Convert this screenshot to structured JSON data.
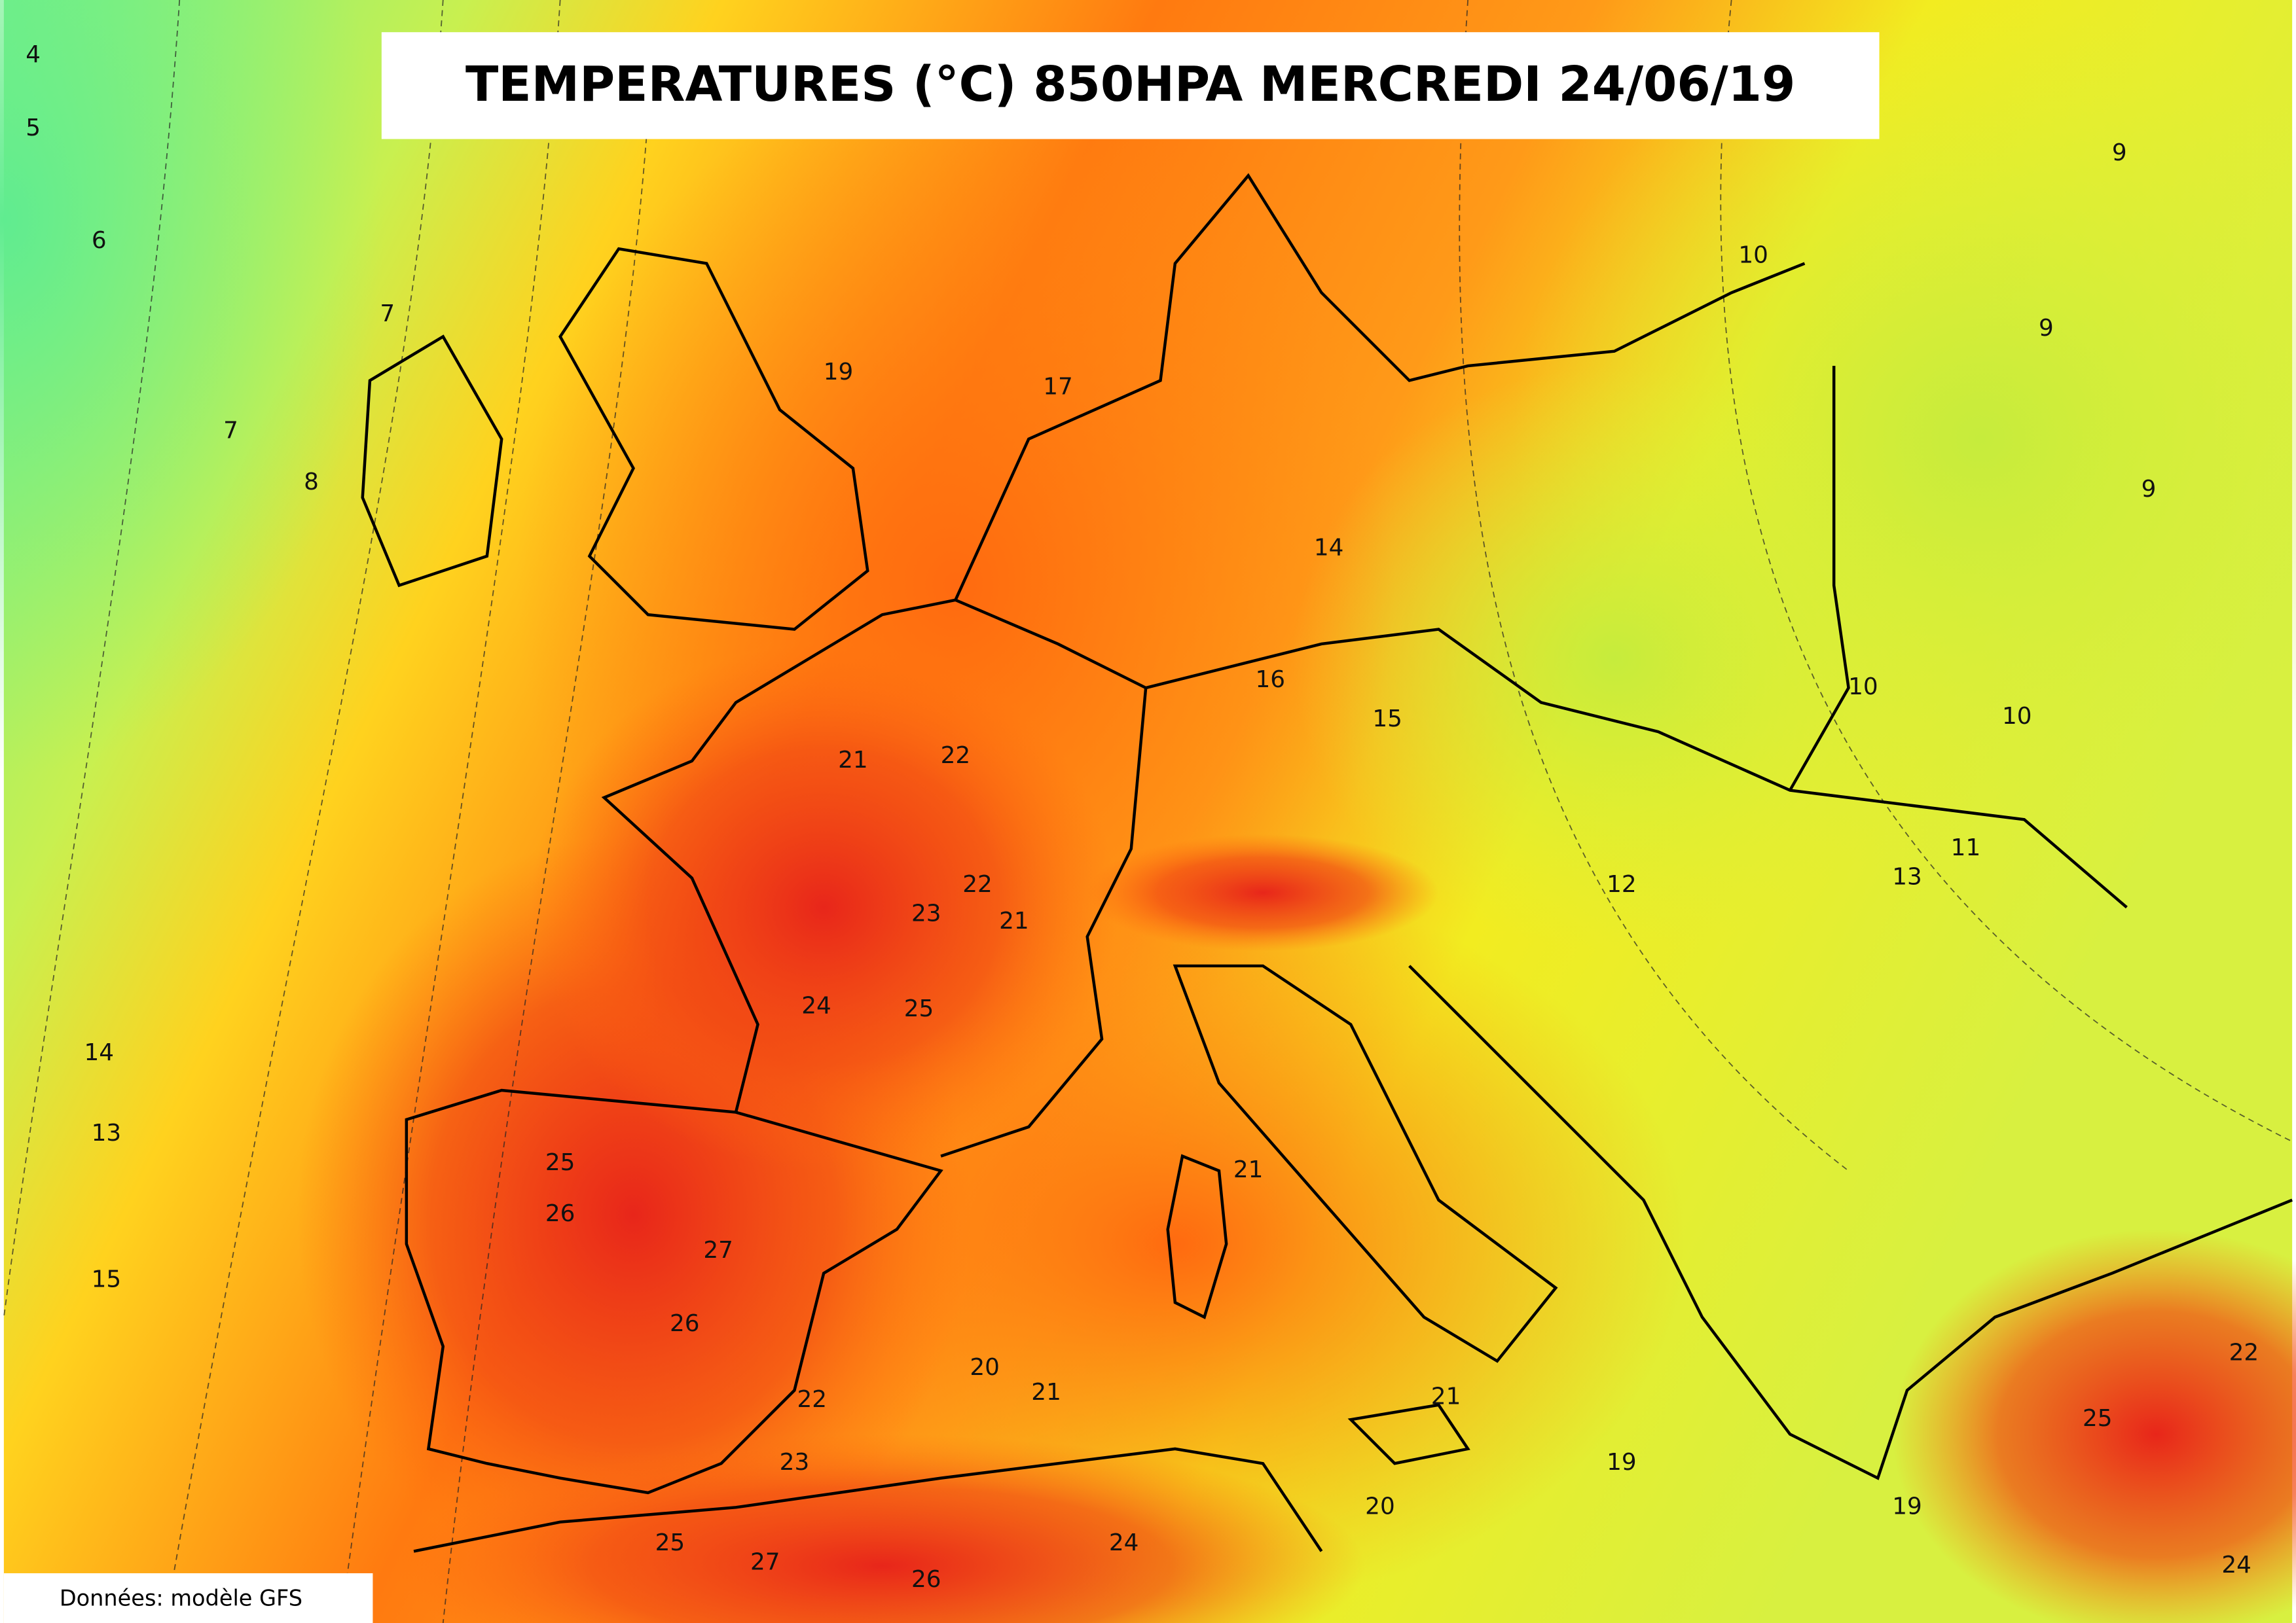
{
  "header": {
    "title": "TEMPERATURES (°C) 850HPA MERCREDI 24/06/19"
  },
  "footer": {
    "source": "Données: modèle GFS"
  },
  "contour_labels": [
    4,
    5,
    6,
    7,
    7,
    8,
    19,
    17,
    14,
    16,
    15,
    10,
    9,
    9,
    9,
    10,
    10,
    11,
    13,
    12,
    21,
    22,
    22,
    21,
    23,
    24,
    25,
    14,
    13,
    15,
    25,
    26,
    27,
    26,
    22,
    23,
    20,
    21,
    21,
    21,
    19,
    20,
    19,
    25,
    22,
    24,
    24,
    25,
    27,
    26
  ]
}
